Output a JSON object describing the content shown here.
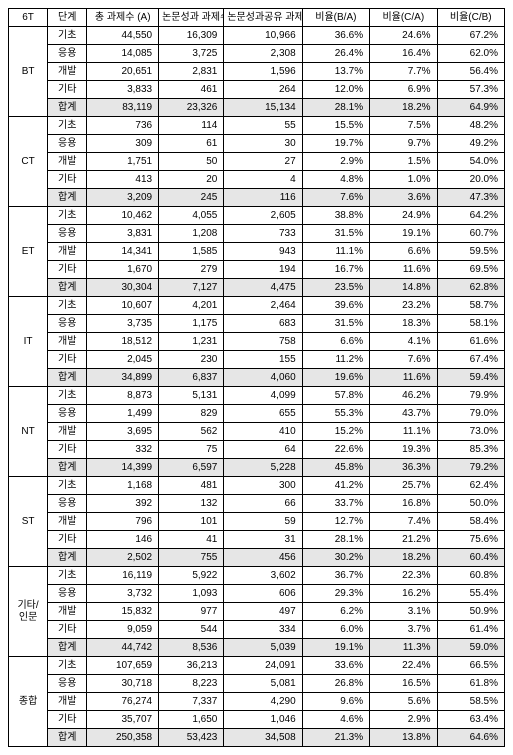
{
  "columns": {
    "c0": "6T",
    "c1": "단계",
    "c2": "총 과제수\n(A)",
    "c3": "논문성과\n과제수(B)",
    "c4": "논문성과공유\n과제수(C)",
    "c5": "비율(B/A)",
    "c6": "비율(C/A)",
    "c7": "비율(C/B)"
  },
  "steps": {
    "s0": "기초",
    "s1": "응용",
    "s2": "개발",
    "s3": "기타",
    "s4": "합계"
  },
  "groups": [
    {
      "name": "BT",
      "rows": [
        {
          "a": "44,550",
          "b": "16,309",
          "c": "10,966",
          "ba": "36.6%",
          "ca": "24.6%",
          "cb": "67.2%"
        },
        {
          "a": "14,085",
          "b": "3,725",
          "c": "2,308",
          "ba": "26.4%",
          "ca": "16.4%",
          "cb": "62.0%"
        },
        {
          "a": "20,651",
          "b": "2,831",
          "c": "1,596",
          "ba": "13.7%",
          "ca": "7.7%",
          "cb": "56.4%"
        },
        {
          "a": "3,833",
          "b": "461",
          "c": "264",
          "ba": "12.0%",
          "ca": "6.9%",
          "cb": "57.3%"
        },
        {
          "a": "83,119",
          "b": "23,326",
          "c": "15,134",
          "ba": "28.1%",
          "ca": "18.2%",
          "cb": "64.9%"
        }
      ]
    },
    {
      "name": "CT",
      "rows": [
        {
          "a": "736",
          "b": "114",
          "c": "55",
          "ba": "15.5%",
          "ca": "7.5%",
          "cb": "48.2%"
        },
        {
          "a": "309",
          "b": "61",
          "c": "30",
          "ba": "19.7%",
          "ca": "9.7%",
          "cb": "49.2%"
        },
        {
          "a": "1,751",
          "b": "50",
          "c": "27",
          "ba": "2.9%",
          "ca": "1.5%",
          "cb": "54.0%"
        },
        {
          "a": "413",
          "b": "20",
          "c": "4",
          "ba": "4.8%",
          "ca": "1.0%",
          "cb": "20.0%"
        },
        {
          "a": "3,209",
          "b": "245",
          "c": "116",
          "ba": "7.6%",
          "ca": "3.6%",
          "cb": "47.3%"
        }
      ]
    },
    {
      "name": "ET",
      "rows": [
        {
          "a": "10,462",
          "b": "4,055",
          "c": "2,605",
          "ba": "38.8%",
          "ca": "24.9%",
          "cb": "64.2%"
        },
        {
          "a": "3,831",
          "b": "1,208",
          "c": "733",
          "ba": "31.5%",
          "ca": "19.1%",
          "cb": "60.7%"
        },
        {
          "a": "14,341",
          "b": "1,585",
          "c": "943",
          "ba": "11.1%",
          "ca": "6.6%",
          "cb": "59.5%"
        },
        {
          "a": "1,670",
          "b": "279",
          "c": "194",
          "ba": "16.7%",
          "ca": "11.6%",
          "cb": "69.5%"
        },
        {
          "a": "30,304",
          "b": "7,127",
          "c": "4,475",
          "ba": "23.5%",
          "ca": "14.8%",
          "cb": "62.8%"
        }
      ]
    },
    {
      "name": "IT",
      "rows": [
        {
          "a": "10,607",
          "b": "4,201",
          "c": "2,464",
          "ba": "39.6%",
          "ca": "23.2%",
          "cb": "58.7%"
        },
        {
          "a": "3,735",
          "b": "1,175",
          "c": "683",
          "ba": "31.5%",
          "ca": "18.3%",
          "cb": "58.1%"
        },
        {
          "a": "18,512",
          "b": "1,231",
          "c": "758",
          "ba": "6.6%",
          "ca": "4.1%",
          "cb": "61.6%"
        },
        {
          "a": "2,045",
          "b": "230",
          "c": "155",
          "ba": "11.2%",
          "ca": "7.6%",
          "cb": "67.4%"
        },
        {
          "a": "34,899",
          "b": "6,837",
          "c": "4,060",
          "ba": "19.6%",
          "ca": "11.6%",
          "cb": "59.4%"
        }
      ]
    },
    {
      "name": "NT",
      "rows": [
        {
          "a": "8,873",
          "b": "5,131",
          "c": "4,099",
          "ba": "57.8%",
          "ca": "46.2%",
          "cb": "79.9%"
        },
        {
          "a": "1,499",
          "b": "829",
          "c": "655",
          "ba": "55.3%",
          "ca": "43.7%",
          "cb": "79.0%"
        },
        {
          "a": "3,695",
          "b": "562",
          "c": "410",
          "ba": "15.2%",
          "ca": "11.1%",
          "cb": "73.0%"
        },
        {
          "a": "332",
          "b": "75",
          "c": "64",
          "ba": "22.6%",
          "ca": "19.3%",
          "cb": "85.3%"
        },
        {
          "a": "14,399",
          "b": "6,597",
          "c": "5,228",
          "ba": "45.8%",
          "ca": "36.3%",
          "cb": "79.2%"
        }
      ]
    },
    {
      "name": "ST",
      "rows": [
        {
          "a": "1,168",
          "b": "481",
          "c": "300",
          "ba": "41.2%",
          "ca": "25.7%",
          "cb": "62.4%"
        },
        {
          "a": "392",
          "b": "132",
          "c": "66",
          "ba": "33.7%",
          "ca": "16.8%",
          "cb": "50.0%"
        },
        {
          "a": "796",
          "b": "101",
          "c": "59",
          "ba": "12.7%",
          "ca": "7.4%",
          "cb": "58.4%"
        },
        {
          "a": "146",
          "b": "41",
          "c": "31",
          "ba": "28.1%",
          "ca": "21.2%",
          "cb": "75.6%"
        },
        {
          "a": "2,502",
          "b": "755",
          "c": "456",
          "ba": "30.2%",
          "ca": "18.2%",
          "cb": "60.4%"
        }
      ]
    },
    {
      "name": "기타/\n인문",
      "rows": [
        {
          "a": "16,119",
          "b": "5,922",
          "c": "3,602",
          "ba": "36.7%",
          "ca": "22.3%",
          "cb": "60.8%"
        },
        {
          "a": "3,732",
          "b": "1,093",
          "c": "606",
          "ba": "29.3%",
          "ca": "16.2%",
          "cb": "55.4%"
        },
        {
          "a": "15,832",
          "b": "977",
          "c": "497",
          "ba": "6.2%",
          "ca": "3.1%",
          "cb": "50.9%"
        },
        {
          "a": "9,059",
          "b": "544",
          "c": "334",
          "ba": "6.0%",
          "ca": "3.7%",
          "cb": "61.4%"
        },
        {
          "a": "44,742",
          "b": "8,536",
          "c": "5,039",
          "ba": "19.1%",
          "ca": "11.3%",
          "cb": "59.0%"
        }
      ]
    },
    {
      "name": "종합",
      "rows": [
        {
          "a": "107,659",
          "b": "36,213",
          "c": "24,091",
          "ba": "33.6%",
          "ca": "22.4%",
          "cb": "66.5%"
        },
        {
          "a": "30,718",
          "b": "8,223",
          "c": "5,081",
          "ba": "26.8%",
          "ca": "16.5%",
          "cb": "61.8%"
        },
        {
          "a": "76,274",
          "b": "7,337",
          "c": "4,290",
          "ba": "9.6%",
          "ca": "5.6%",
          "cb": "58.5%"
        },
        {
          "a": "35,707",
          "b": "1,650",
          "c": "1,046",
          "ba": "4.6%",
          "ca": "2.9%",
          "cb": "63.4%"
        },
        {
          "a": "250,358",
          "b": "53,423",
          "c": "34,508",
          "ba": "21.3%",
          "ca": "13.8%",
          "cb": "64.6%"
        }
      ]
    }
  ]
}
